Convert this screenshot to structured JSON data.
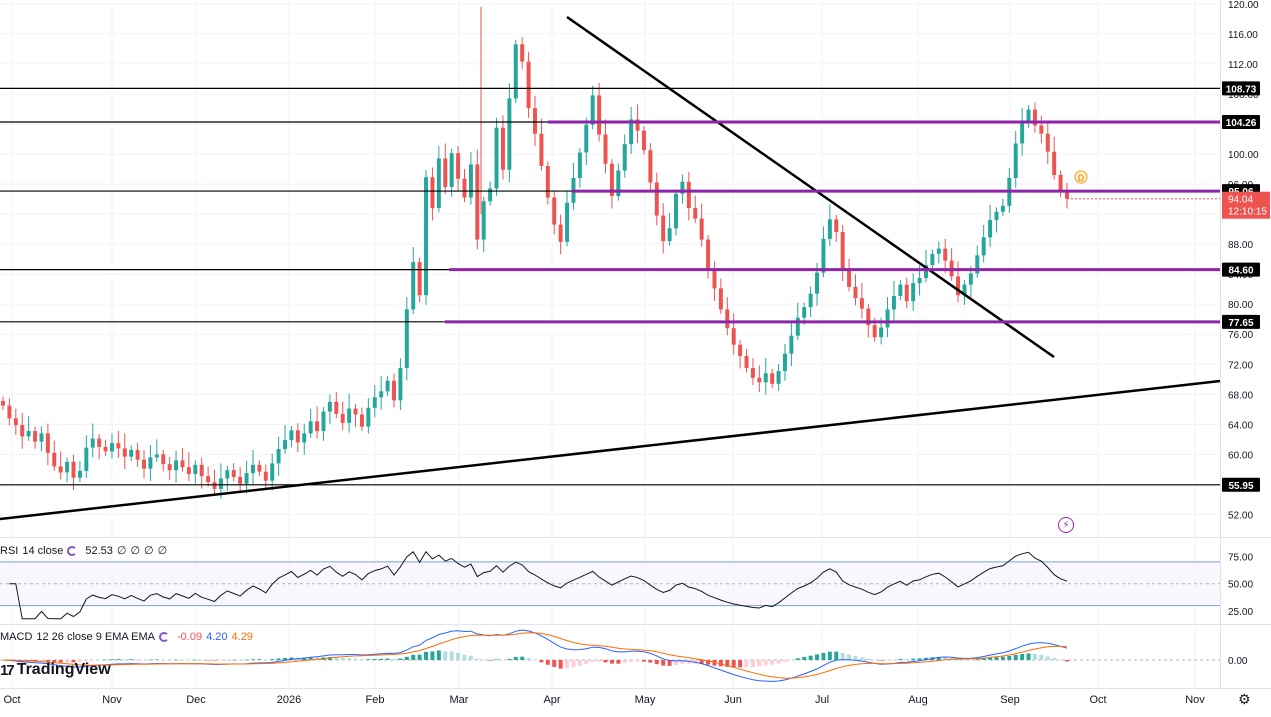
{
  "chart_data": {
    "type": "candlestick",
    "price_axis": {
      "ticks": [
        52,
        56,
        60,
        64,
        68,
        72,
        76,
        80,
        84,
        88,
        92,
        96,
        100,
        104,
        108,
        112,
        116,
        120
      ],
      "tick_labels": [
        "52.00",
        "56.00",
        "60.00",
        "64.00",
        "68.00",
        "72.00",
        "76.00",
        "80.00",
        "84.00",
        "88.00",
        "92.00",
        "96.00",
        "100.00",
        "104.00",
        "108.00",
        "112.00",
        "116.00",
        "120.00"
      ],
      "ylim": [
        49,
        120.5
      ],
      "scale": "linear"
    },
    "time_axis": {
      "labels": [
        "Oct",
        "Nov",
        "Dec",
        "2026",
        "Feb",
        "Mar",
        "Apr",
        "May",
        "Jun",
        "Jul",
        "Aug",
        "Sep",
        "Oct",
        "Nov"
      ]
    },
    "horizontal_levels": [
      {
        "value": 108.73,
        "label": "108.73",
        "color": "#000000"
      },
      {
        "value": 104.26,
        "label": "104.26",
        "color": "#8e24aa"
      },
      {
        "value": 95.06,
        "label": "95.06",
        "color": "#8e24aa"
      },
      {
        "value": 84.6,
        "label": "84.60",
        "color": "#8e24aa"
      },
      {
        "value": 77.65,
        "label": "77.65",
        "color": "#8e24aa"
      },
      {
        "value": 55.95,
        "label": "55.95",
        "color": "#000000"
      }
    ],
    "current_price": {
      "value": 94.04,
      "label": "94.04",
      "countdown": "12:10:15",
      "color": "#ef5350"
    },
    "event_marker": "D",
    "ohlc_closes": [
      66.5,
      64.8,
      63.9,
      62.4,
      63.1,
      61.7,
      62.8,
      60.2,
      58.4,
      57.6,
      59.0,
      56.9,
      57.8,
      60.9,
      62.1,
      61.0,
      60.4,
      61.5,
      60.8,
      59.7,
      60.6,
      59.3,
      58.1,
      59.6,
      60.0,
      58.7,
      57.9,
      59.2,
      58.3,
      57.4,
      58.6,
      57.1,
      56.3,
      55.4,
      56.8,
      57.9,
      57.0,
      56.1,
      57.5,
      58.6,
      57.7,
      56.5,
      58.8,
      60.7,
      61.9,
      63.2,
      61.6,
      62.8,
      64.4,
      63.1,
      65.7,
      67.0,
      65.4,
      64.2,
      66.1,
      65.3,
      63.7,
      66.2,
      67.6,
      68.4,
      69.8,
      67.2,
      71.5,
      79.3,
      85.6,
      81.2,
      96.9,
      92.8,
      99.4,
      95.6,
      100.1,
      96.7,
      94.2,
      98.6,
      88.6,
      93.7,
      95.4,
      103.5,
      97.9,
      107.4,
      114.6,
      112.3,
      106.1,
      102.7,
      98.4,
      94.2,
      90.6,
      88.3,
      93.5,
      96.8,
      100.2,
      103.9,
      107.8,
      102.6,
      98.7,
      94.4,
      97.8,
      101.3,
      104.6,
      103.1,
      100.5,
      96.2,
      91.8,
      88.4,
      90.1,
      94.7,
      96.3,
      92.8,
      91.4,
      88.6,
      84.7,
      82.1,
      79.3,
      76.8,
      74.6,
      73.1,
      71.5,
      70.2,
      69.6,
      70.8,
      69.4,
      71.1,
      73.4,
      75.8,
      78.2,
      79.6,
      81.4,
      84.2,
      88.7,
      91.3,
      89.6,
      84.7,
      82.3,
      80.8,
      79.4,
      77.2,
      75.6,
      76.9,
      79.3,
      81.1,
      82.6,
      80.4,
      82.8,
      83.5,
      85.2,
      86.7,
      87.4,
      85.8,
      83.7,
      81.2,
      82.6,
      84.1,
      86.5,
      88.9,
      91.2,
      92.3,
      93.1,
      96.8,
      101.4,
      104.1,
      105.9,
      103.8,
      102.7,
      100.3,
      97.2,
      95.2,
      94.04
    ],
    "rsi": {
      "label": "RSI",
      "params": "14 close",
      "value": "52.53",
      "extra": [
        "∅",
        "∅",
        "∅",
        "∅"
      ],
      "upper_band": 70,
      "lower_band": 30,
      "mid_line": 50,
      "ticks": [
        25,
        50,
        75
      ],
      "tick_labels": [
        "25.00",
        "50.00",
        "75.00"
      ]
    },
    "macd": {
      "label": "MACD",
      "params": "12 26 close 9 EMA EMA",
      "values": [
        "-0.09",
        "4.20",
        "4.29"
      ],
      "value_colors": [
        "#ef5350",
        "#2962ff",
        "#ff6d00"
      ],
      "zero_label": "0.00"
    }
  },
  "branding": {
    "logo_text": "TradingView"
  },
  "badges": {
    "flash_icon": "lightning-icon",
    "settings_icon": "gear-icon"
  },
  "colors": {
    "up": "#26a69a",
    "down": "#ef5350",
    "level_purple": "#8e24aa",
    "rsi_band": "#7e9fd6",
    "macd_line": "#2962ff",
    "signal_line": "#ff6d00"
  }
}
